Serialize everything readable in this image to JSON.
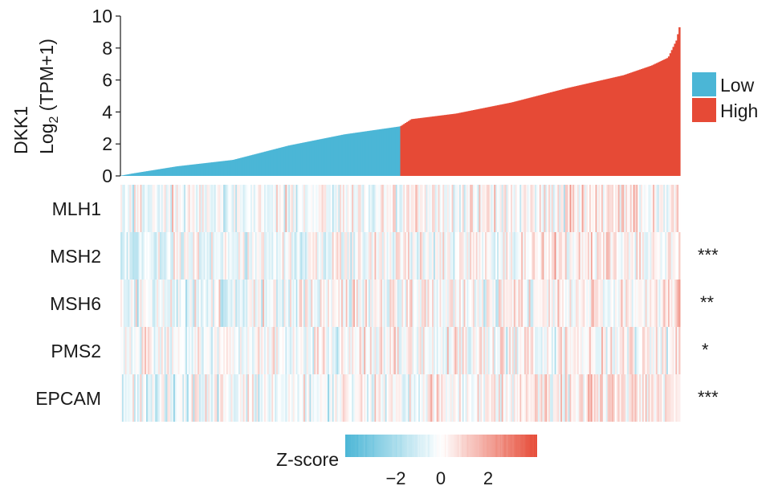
{
  "chart_data": {
    "type": "bar",
    "title": "",
    "bar_panel": {
      "ylabel_gene": "DKK1",
      "ylabel_measure_prefix": "Log",
      "ylabel_measure_subscript": "2",
      "ylabel_measure_suffix": " (TPM+1)",
      "ylim": [
        0,
        10
      ],
      "yticks": [
        "0",
        "2",
        "4",
        "6",
        "8",
        "10"
      ],
      "sample_count": 370,
      "split_index": 185,
      "values_description_points": [
        [
          0,
          0.02
        ],
        [
          0.02,
          0.15
        ],
        [
          0.1,
          0.6
        ],
        [
          0.2,
          1.0
        ],
        [
          0.3,
          1.9
        ],
        [
          0.4,
          2.6
        ],
        [
          0.5,
          3.1
        ],
        [
          0.52,
          3.55
        ],
        [
          0.6,
          3.9
        ],
        [
          0.7,
          4.6
        ],
        [
          0.8,
          5.5
        ],
        [
          0.9,
          6.3
        ],
        [
          0.95,
          6.9
        ],
        [
          0.98,
          7.4
        ],
        [
          0.995,
          8.5
        ],
        [
          1.0,
          9.3
        ]
      ],
      "groups": [
        {
          "name": "Low",
          "color": "#4bb6d6"
        },
        {
          "name": "High",
          "color": "#e64a36"
        }
      ]
    },
    "heatmap": {
      "rows": [
        {
          "gene": "MLH1",
          "significance": ""
        },
        {
          "gene": "MSH2",
          "significance": "***"
        },
        {
          "gene": "MSH6",
          "significance": "**"
        },
        {
          "gene": "PMS2",
          "significance": "*"
        },
        {
          "gene": "EPCAM",
          "significance": "***"
        }
      ],
      "colorbar": {
        "label": "Z-score",
        "ticks": [
          "−2",
          "0",
          "2"
        ],
        "low_color": "#4bb6d6",
        "mid_color": "#ffffff",
        "high_color": "#e64a36",
        "range": [
          -3.5,
          3.5
        ]
      }
    }
  }
}
